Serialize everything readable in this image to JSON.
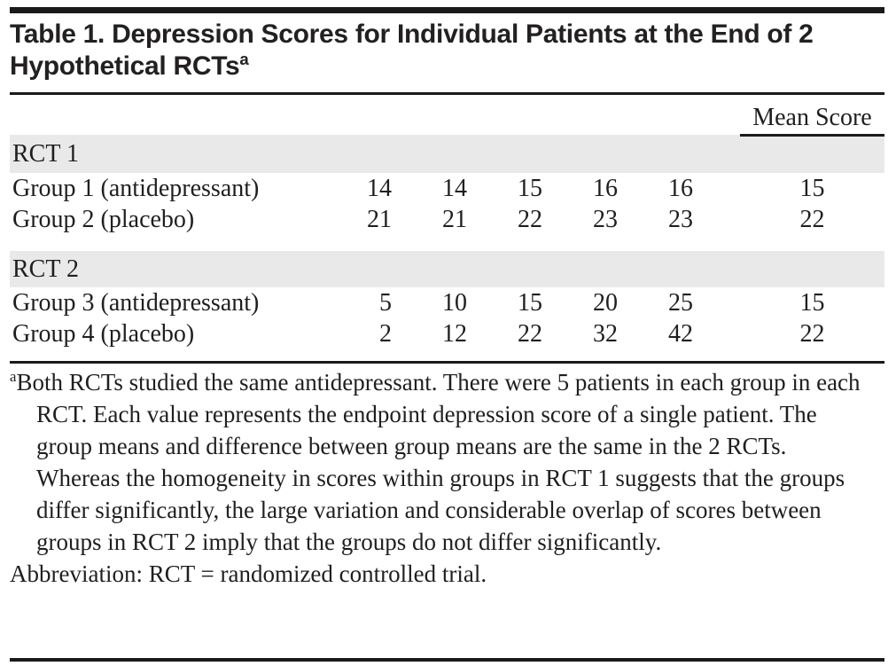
{
  "title": {
    "text": "Table 1. Depression Scores for Individual Patients at the End of 2 Hypothetical RCTs",
    "superscript": "a"
  },
  "table": {
    "mean_score_header": "Mean Score",
    "sections": [
      {
        "label": "RCT 1",
        "rows": [
          {
            "label": "Group 1 (antidepressant)",
            "values": [
              "14",
              "14",
              "15",
              "16",
              "16"
            ],
            "mean": "15"
          },
          {
            "label": "Group 2 (placebo)",
            "values": [
              "21",
              "21",
              "22",
              "23",
              "23"
            ],
            "mean": "22"
          }
        ]
      },
      {
        "label": "RCT 2",
        "rows": [
          {
            "label": "Group 3 (antidepressant)",
            "values": [
              "5",
              "10",
              "15",
              "20",
              "25"
            ],
            "mean": "15"
          },
          {
            "label": "Group 4 (placebo)",
            "values": [
              "2",
              "12",
              "22",
              "32",
              "42"
            ],
            "mean": "22"
          }
        ]
      }
    ]
  },
  "footnotes": {
    "marker": "a",
    "note": "Both RCTs studied the same antidepressant. There were 5 patients in each group in each RCT. Each value represents the endpoint depression score of a single patient. The group means and difference between group means are the same in the 2 RCTs. Whereas the homogeneity in scores within groups in RCT 1 suggests that the groups differ significantly, the large variation and considerable overlap of scores between groups in RCT 2 imply that the groups do not differ significantly.",
    "abbreviation": "Abbreviation: RCT = randomized controlled trial."
  },
  "colors": {
    "ink": "#1f1f1f",
    "rule": "#1a1a1a",
    "section_band": "#e9e9e9"
  }
}
